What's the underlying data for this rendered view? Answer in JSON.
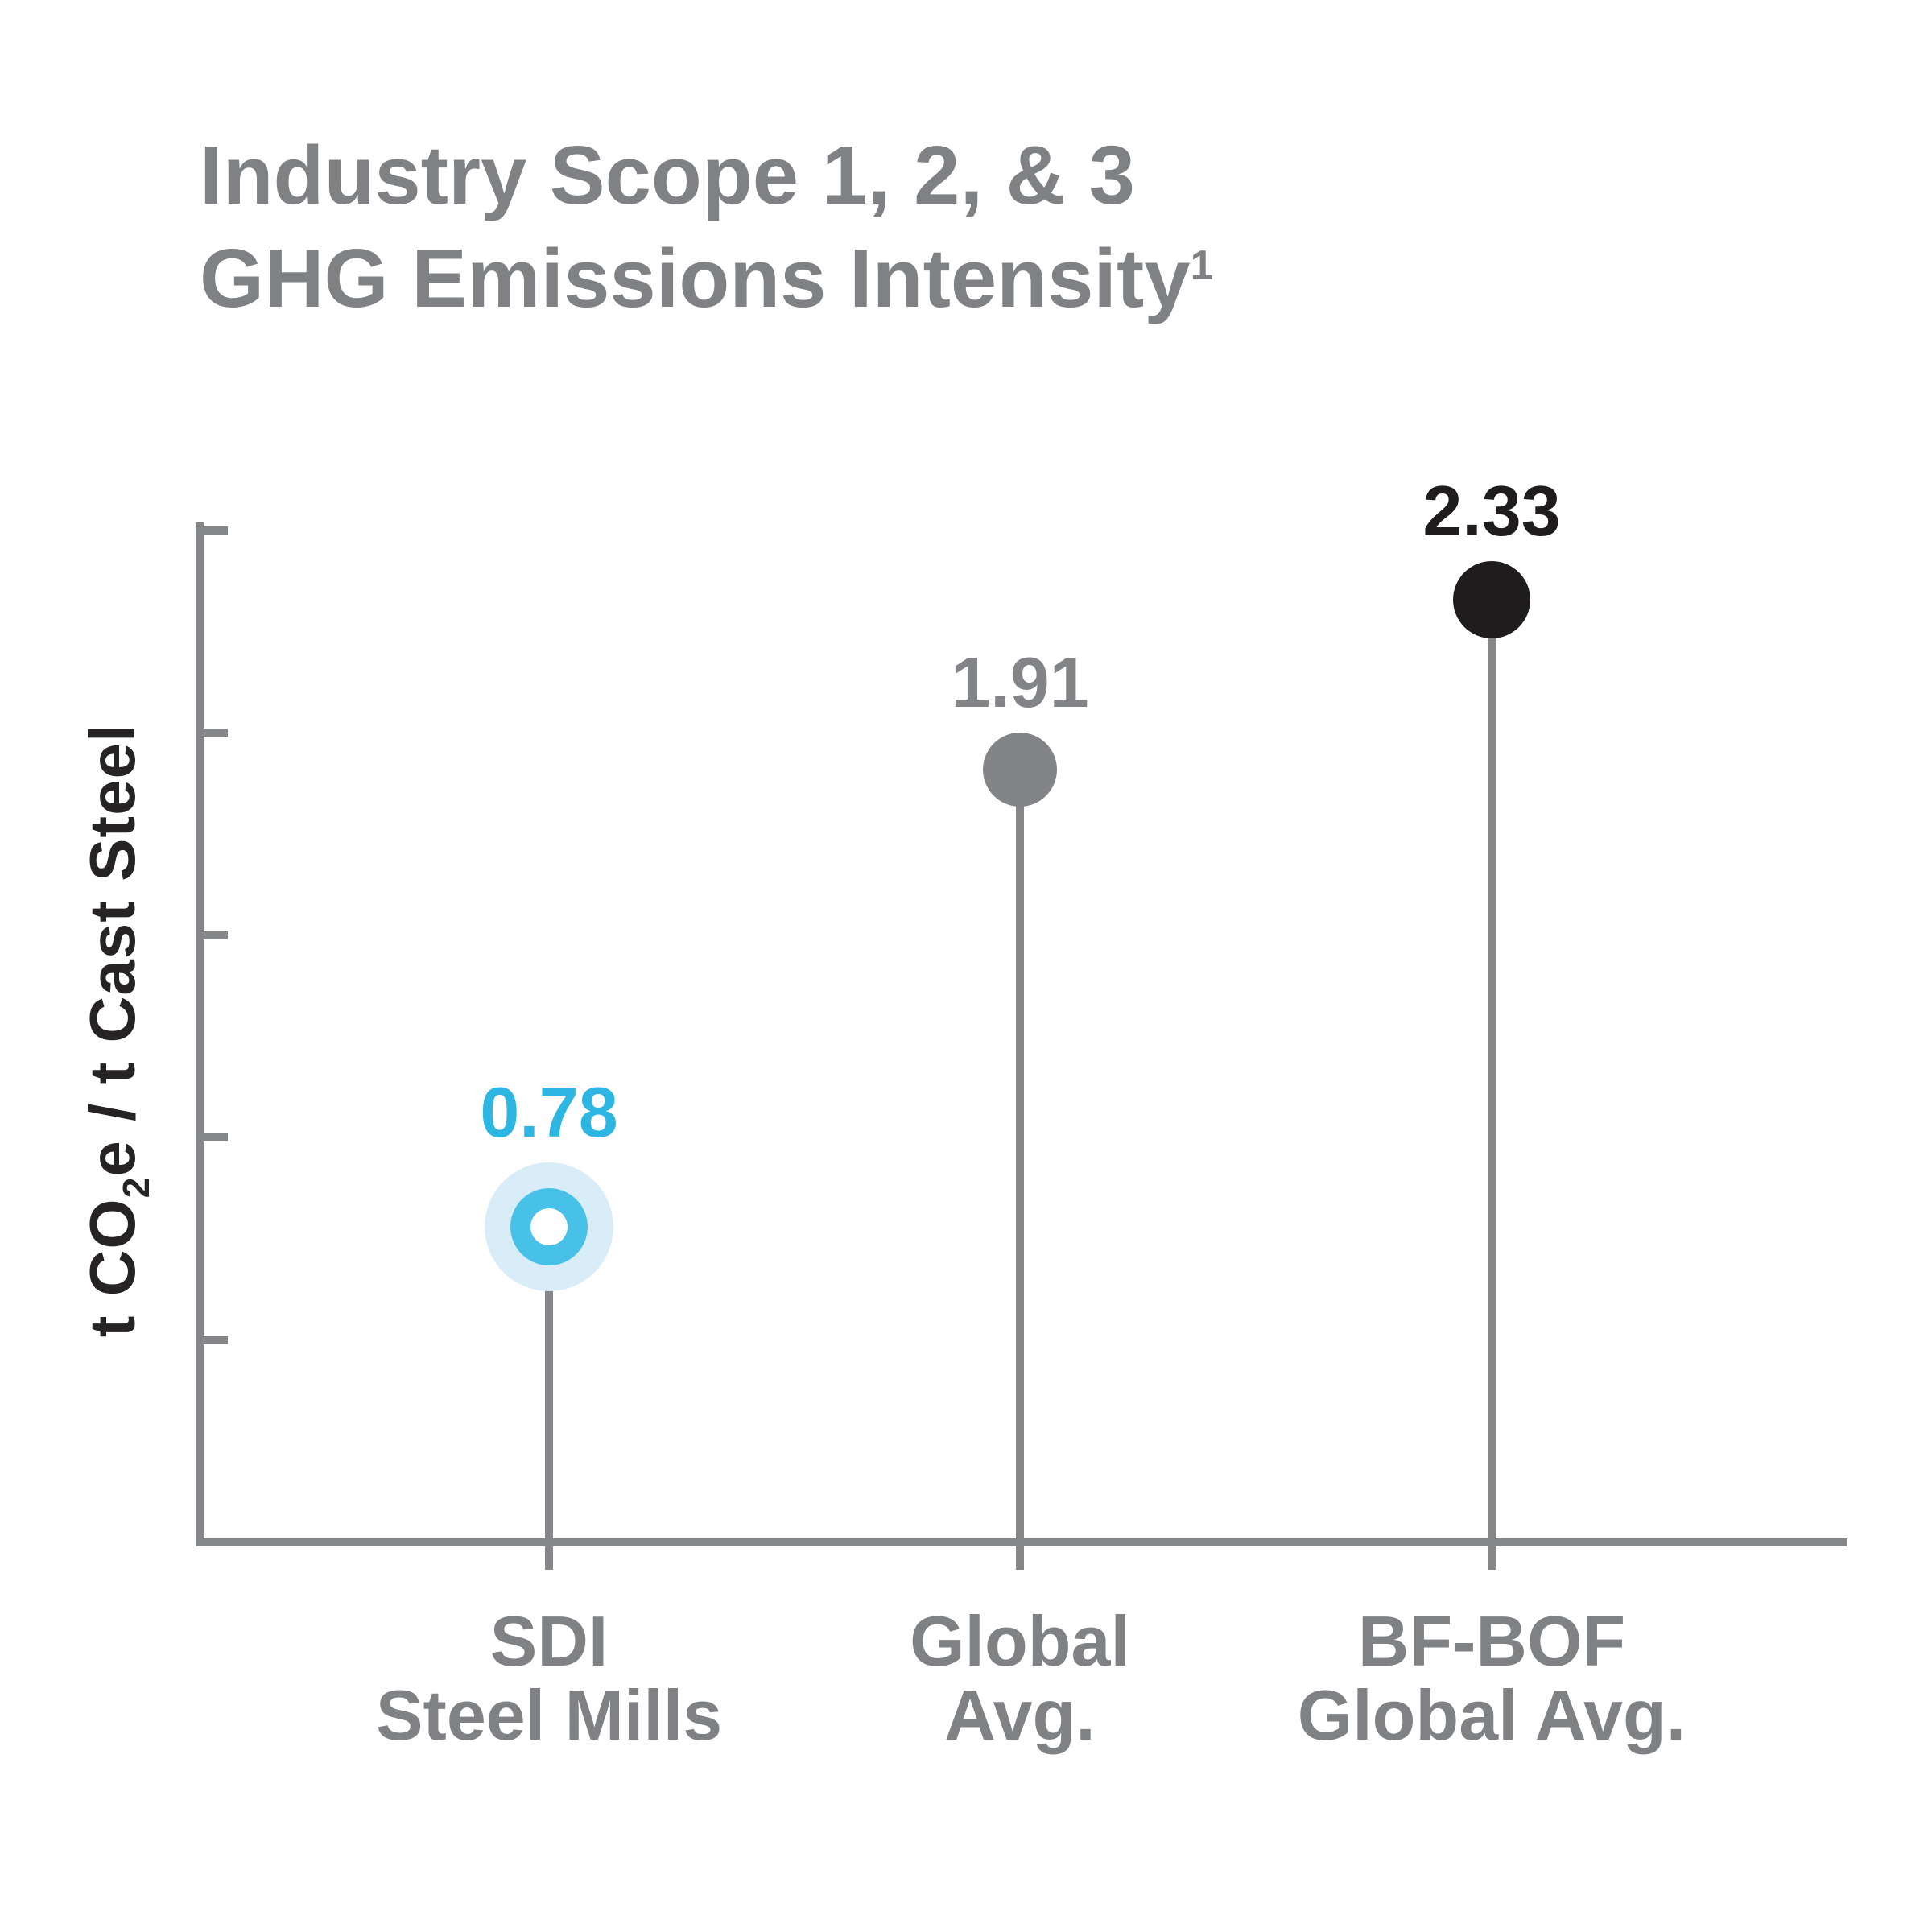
{
  "title": {
    "line1": "Industry Scope 1, 2, & 3",
    "line2": "GHG Emissions Intensity",
    "footnote_marker": "1"
  },
  "y_axis": {
    "title_pre": "t CO",
    "title_sub": "2",
    "title_post": "e / t Cast Steel"
  },
  "chart_data": {
    "type": "scatter",
    "variant": "lollipop",
    "title": "Industry Scope 1, 2, & 3 GHG Emissions Intensity",
    "ylabel": "t CO2e / t Cast Steel",
    "categories": [
      [
        "SDI",
        "Steel Mills"
      ],
      [
        "Global",
        "Avg."
      ],
      [
        "BF-BOF",
        "Global Avg."
      ]
    ],
    "values": [
      0.78,
      1.91,
      2.33
    ],
    "value_labels": [
      "0.78",
      "1.91",
      "2.33"
    ],
    "ylim": [
      0,
      2.52
    ],
    "y_ticks": [
      0.5,
      1.0,
      1.5,
      2.0,
      2.5
    ],
    "grid": false,
    "legend": false,
    "tick_labels_shown": false,
    "point_styles": [
      {
        "shape": "ring-with-halo",
        "fill": "#47c1e8",
        "halo": "#d9edf8",
        "hole": "#ffffff",
        "label_color": "#2eb6e2"
      },
      {
        "shape": "solid",
        "fill": "#838487",
        "label_color": "#838487"
      },
      {
        "shape": "solid",
        "fill": "#1f1c1d",
        "label_color": "#1f1c1d"
      }
    ]
  },
  "colors": {
    "title_gray": "#7f8184",
    "axis_gray": "#85868a",
    "ylabel_dark": "#262324",
    "accent_blue": "#47c1e8",
    "accent_blue_halo": "#d9edf8",
    "neutral_gray": "#838487",
    "near_black": "#1f1c1d",
    "background": "#ffffff"
  }
}
